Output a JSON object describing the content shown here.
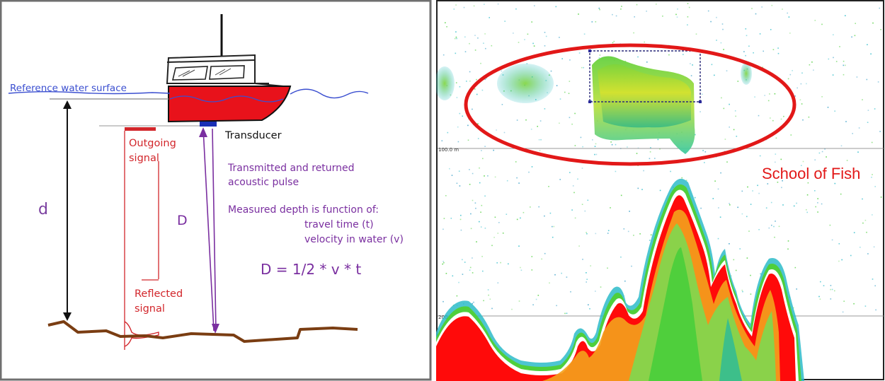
{
  "left_diagram": {
    "reference_label": "Reference water surface",
    "transducer_label": "Transducer",
    "outgoing_label": [
      "Outgoing",
      "signal"
    ],
    "d_label": "d",
    "D_label": "D",
    "pulse_label": [
      "Transmitted and returned",
      "acoustic pulse"
    ],
    "measured_label": [
      "Measured depth is function of:",
      "travel time (t)",
      "velocity in water (v)"
    ],
    "formula": "D = 1/2 * v * t",
    "reflected_label": [
      "Reflected",
      "signal"
    ]
  },
  "echogram": {
    "depth_tick_1": "100.0 m",
    "depth_tick_2": "200.0 m",
    "school_label": "School of Fish"
  },
  "colors": {
    "hull_red": "#e8121b",
    "water_blue": "#3b4fd0",
    "purple": "#7a2fa0",
    "seabed_brown": "#7a3d12",
    "signal_red": "#d2262b",
    "echo_red": "#ff0a0a",
    "echo_orange": "#f4a21c",
    "echo_yellow": "#e9e52a",
    "echo_green": "#4fcf3c",
    "echo_cyan": "#2dbbc9",
    "school_ellipse": "#e21818"
  }
}
